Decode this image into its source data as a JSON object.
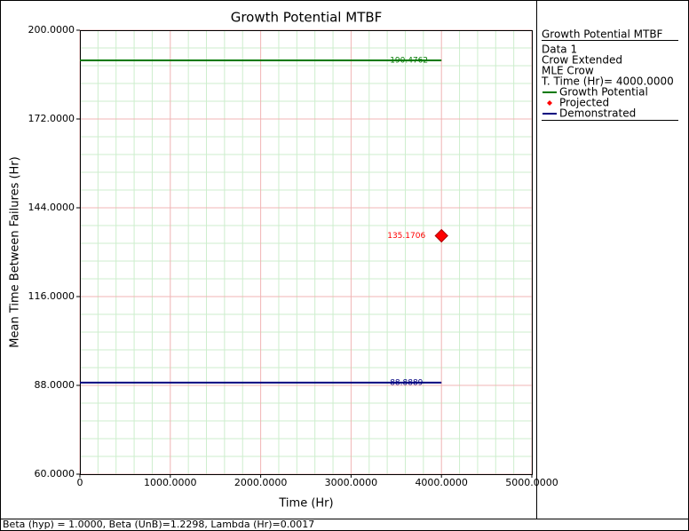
{
  "chart_data": {
    "type": "line",
    "title": "Growth Potential MTBF",
    "x_label": "Time (Hr)",
    "y_label": "Mean Time Between Failures (Hr)",
    "xlim": [
      0,
      5000
    ],
    "ylim": [
      60,
      200
    ],
    "xticks": [
      0,
      {
        "value": 1000,
        "label": "1000.0000"
      },
      {
        "value": 2000,
        "label": "2000.0000"
      },
      {
        "value": 3000,
        "label": "3000.0000"
      },
      {
        "value": 4000,
        "label": "4000.0000"
      },
      {
        "value": 5000,
        "label": "5000.0000"
      }
    ],
    "yticks": [
      {
        "value": 60,
        "label": "60.0000"
      },
      {
        "value": 88,
        "label": "88.0000"
      },
      {
        "value": 116,
        "label": "116.0000"
      },
      {
        "value": 144,
        "label": "144.0000"
      },
      {
        "value": 172,
        "label": "172.0000"
      },
      {
        "value": 200,
        "label": "200.0000"
      }
    ],
    "grid": true,
    "grid_color": "#f0b4b4",
    "minor_grid_color": "#cdeecd",
    "minor_divisions": 5,
    "series": [
      {
        "name": "Growth Potential",
        "color": "#007a00",
        "style": "line",
        "x": [
          0,
          4000
        ],
        "values": [
          190.4762,
          190.4762
        ]
      },
      {
        "name": "Projected",
        "color": "#ff0000",
        "style": "marker",
        "x": [
          4000
        ],
        "values": [
          135.1706
        ]
      },
      {
        "name": "Demonstrated",
        "color": "#00007f",
        "style": "line",
        "x": [
          0,
          4000
        ],
        "values": [
          88.8889,
          88.8889
        ]
      }
    ],
    "legend": {
      "title": "Growth Potential MTBF",
      "info": [
        "Data 1",
        "Crow Extended",
        "MLE Crow",
        "T. Time (Hr)= 4000.0000"
      ]
    },
    "footer": "Beta (hyp) = 1.0000, Beta (UnB)=1.2298, Lambda (Hr)=0.0017"
  }
}
